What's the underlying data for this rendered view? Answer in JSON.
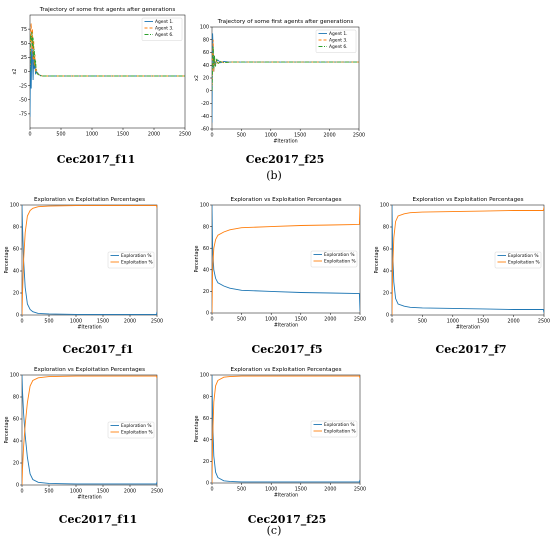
{
  "figure_labels": {
    "top": "(b)",
    "bottom": "(c)"
  },
  "colors": {
    "blue": "#1f77b4",
    "orange": "#ff7f0e",
    "green": "#2ca02c"
  },
  "chart_data": [
    {
      "type": "line",
      "caption": "Cec2017_f11",
      "title": "Trajectory of some first agents after generations",
      "xlabel": "",
      "ylabel": "x2",
      "xlim": [
        0,
        2500
      ],
      "ylim": [
        -100,
        100
      ],
      "xticks": [
        0,
        500,
        1000,
        1500,
        2000,
        2500
      ],
      "yticks": [
        -75,
        -50,
        -25,
        0,
        25,
        50,
        75
      ],
      "legend": "top-right",
      "series": [
        {
          "name": "Agent 1.",
          "color": "#1f77b4",
          "style": "solid",
          "x": [
            0,
            5,
            10,
            15,
            20,
            30,
            40,
            50,
            60,
            70,
            80,
            90,
            100,
            120,
            150,
            200,
            250,
            300,
            400,
            2500
          ],
          "y": [
            -80,
            -20,
            40,
            10,
            -30,
            60,
            20,
            -15,
            30,
            5,
            10,
            -5,
            0,
            -2,
            -6,
            -8,
            -8,
            -8,
            -8,
            -8
          ]
        },
        {
          "name": "Agent 3.",
          "color": "#ff7f0e",
          "style": "dashed",
          "x": [
            0,
            10,
            20,
            30,
            40,
            50,
            60,
            70,
            80,
            90,
            100,
            120,
            150,
            200,
            250,
            300,
            400,
            2500
          ],
          "y": [
            0,
            70,
            85,
            40,
            75,
            20,
            55,
            10,
            30,
            0,
            5,
            -3,
            -6,
            -8,
            -8,
            -8,
            -8,
            -8
          ]
        },
        {
          "name": "Agent 6.",
          "color": "#2ca02c",
          "style": "dashdot",
          "x": [
            0,
            10,
            20,
            30,
            40,
            50,
            60,
            70,
            80,
            90,
            100,
            120,
            150,
            200,
            250,
            300,
            400,
            2500
          ],
          "y": [
            0,
            65,
            55,
            70,
            45,
            60,
            25,
            40,
            10,
            20,
            0,
            -4,
            -7,
            -8,
            -8,
            -8,
            -8,
            -8
          ]
        }
      ]
    },
    {
      "type": "line",
      "caption": "Cec2017_f25",
      "title": "Trajectory of some first agents after generations",
      "xlabel": "#Iteration",
      "ylabel": "x2",
      "xlim": [
        0,
        2500
      ],
      "ylim": [
        -60,
        100
      ],
      "xticks": [
        0,
        500,
        1000,
        1500,
        2000,
        2500
      ],
      "yticks": [
        -60,
        -40,
        -20,
        0,
        20,
        40,
        60,
        80,
        100
      ],
      "legend": "top-right",
      "series": [
        {
          "name": "Agent 1.",
          "color": "#1f77b4",
          "style": "solid",
          "x": [
            0,
            5,
            10,
            20,
            30,
            40,
            50,
            70,
            100,
            150,
            200,
            300,
            500,
            2500
          ],
          "y": [
            -50,
            20,
            90,
            60,
            30,
            55,
            40,
            45,
            48,
            44,
            46,
            45,
            45,
            45
          ]
        },
        {
          "name": "Agent 3.",
          "color": "#ff7f0e",
          "style": "dashed",
          "x": [
            0,
            10,
            20,
            30,
            40,
            60,
            80,
            100,
            150,
            200,
            300,
            500,
            2500
          ],
          "y": [
            0,
            60,
            80,
            30,
            50,
            40,
            48,
            43,
            46,
            44,
            45,
            45,
            45
          ]
        },
        {
          "name": "Agent 6.",
          "color": "#2ca02c",
          "style": "dashdot",
          "x": [
            0,
            10,
            20,
            30,
            40,
            60,
            80,
            100,
            150,
            200,
            300,
            500,
            2500
          ],
          "y": [
            0,
            40,
            70,
            35,
            55,
            38,
            50,
            42,
            46,
            44,
            45,
            45,
            45
          ]
        }
      ]
    },
    {
      "type": "line",
      "caption": "Cec2017_f1",
      "title": "Exploration vs Exploitation Percentages",
      "xlabel": "#Iteration",
      "ylabel": "Percentage",
      "xlim": [
        0,
        2500
      ],
      "ylim": [
        0,
        100
      ],
      "xticks": [
        0,
        500,
        1000,
        1500,
        2000,
        2500
      ],
      "yticks": [
        0,
        20,
        40,
        60,
        80,
        100
      ],
      "legend": "center-right",
      "series": [
        {
          "name": "Exploration %",
          "color": "#1f77b4",
          "x": [
            0,
            10,
            30,
            60,
            100,
            150,
            200,
            300,
            500,
            1000,
            2000,
            2490,
            2500
          ],
          "y": [
            100,
            80,
            50,
            25,
            10,
            5,
            3,
            1.5,
            1,
            0.5,
            0.5,
            0.5,
            3
          ]
        },
        {
          "name": "Exploitation %",
          "color": "#ff7f0e",
          "x": [
            0,
            10,
            30,
            60,
            100,
            150,
            200,
            300,
            500,
            1000,
            2000,
            2490,
            2500
          ],
          "y": [
            0,
            20,
            50,
            75,
            90,
            95,
            97,
            98.5,
            99,
            99.5,
            99.5,
            99.5,
            97
          ]
        }
      ]
    },
    {
      "type": "line",
      "caption": "Cec2017_f5",
      "title": "Exploration vs Exploitation Percentages",
      "xlabel": "#Iteration",
      "ylabel": "Percentage",
      "xlim": [
        0,
        2500
      ],
      "ylim": [
        0,
        100
      ],
      "xticks": [
        0,
        500,
        1000,
        1500,
        2000,
        2500
      ],
      "yticks": [
        0,
        20,
        40,
        60,
        80,
        100
      ],
      "legend": "center-right",
      "series": [
        {
          "name": "Exploration %",
          "color": "#1f77b4",
          "x": [
            0,
            10,
            30,
            60,
            100,
            200,
            300,
            500,
            1000,
            1500,
            2000,
            2490,
            2500
          ],
          "y": [
            100,
            60,
            40,
            32,
            28,
            25,
            23,
            21,
            20,
            19,
            18.5,
            18,
            2
          ]
        },
        {
          "name": "Exploitation %",
          "color": "#ff7f0e",
          "x": [
            0,
            10,
            30,
            60,
            100,
            200,
            300,
            500,
            1000,
            1500,
            2000,
            2490,
            2500
          ],
          "y": [
            0,
            40,
            60,
            68,
            72,
            75,
            77,
            79,
            80,
            81,
            81.5,
            82,
            98
          ]
        }
      ]
    },
    {
      "type": "line",
      "caption": "Cec2017_f7",
      "title": "Exploration vs Exploitation Percentages",
      "xlabel": "#Iteration",
      "ylabel": "Percentage",
      "xlim": [
        0,
        2500
      ],
      "ylim": [
        0,
        100
      ],
      "xticks": [
        0,
        500,
        1000,
        1500,
        2000,
        2500
      ],
      "yticks": [
        0,
        20,
        40,
        60,
        80,
        100
      ],
      "legend": "center-right",
      "series": [
        {
          "name": "Exploration %",
          "color": "#1f77b4",
          "x": [
            0,
            10,
            30,
            60,
            100,
            200,
            300,
            500,
            1000,
            1500,
            2000,
            2490,
            2500
          ],
          "y": [
            100,
            60,
            30,
            15,
            10,
            8,
            7,
            6.5,
            6,
            5.5,
            5,
            5,
            2
          ]
        },
        {
          "name": "Exploitation %",
          "color": "#ff7f0e",
          "x": [
            0,
            10,
            30,
            60,
            100,
            200,
            300,
            500,
            1000,
            1500,
            2000,
            2490,
            2500
          ],
          "y": [
            0,
            40,
            70,
            85,
            90,
            92,
            93,
            93.5,
            94,
            94.5,
            95,
            95,
            98
          ]
        }
      ]
    },
    {
      "type": "line",
      "caption": "Cec2017_f11",
      "title": "Exploration vs Exploitation Percentages",
      "xlabel": "#Iteration",
      "ylabel": "Percentage",
      "xlim": [
        0,
        2500
      ],
      "ylim": [
        0,
        100
      ],
      "xticks": [
        0,
        500,
        1000,
        1500,
        2000,
        2500
      ],
      "yticks": [
        0,
        20,
        40,
        60,
        80,
        100
      ],
      "legend": "center-right",
      "series": [
        {
          "name": "Exploration %",
          "color": "#1f77b4",
          "x": [
            0,
            10,
            30,
            60,
            100,
            150,
            200,
            300,
            500,
            1000,
            2000,
            2490,
            2500
          ],
          "y": [
            100,
            85,
            65,
            45,
            25,
            10,
            5,
            2.5,
            1.5,
            1,
            1,
            1,
            3
          ]
        },
        {
          "name": "Exploitation %",
          "color": "#ff7f0e",
          "x": [
            0,
            10,
            30,
            60,
            100,
            150,
            200,
            300,
            500,
            1000,
            2000,
            2490,
            2500
          ],
          "y": [
            0,
            15,
            35,
            55,
            75,
            90,
            95,
            97.5,
            98.5,
            99,
            99,
            99,
            97
          ]
        }
      ]
    },
    {
      "type": "line",
      "caption": "Cec2017_f25",
      "title": "Exploration vs Exploitation Percentages",
      "xlabel": "#Iteration",
      "ylabel": "Percentage",
      "xlim": [
        0,
        2500
      ],
      "ylim": [
        0,
        100
      ],
      "xticks": [
        0,
        500,
        1000,
        1500,
        2000,
        2500
      ],
      "yticks": [
        0,
        20,
        40,
        60,
        80,
        100
      ],
      "legend": "center-right",
      "series": [
        {
          "name": "Exploration %",
          "color": "#1f77b4",
          "x": [
            0,
            10,
            30,
            60,
            100,
            200,
            300,
            500,
            1000,
            2000,
            2490,
            2500
          ],
          "y": [
            100,
            60,
            25,
            10,
            5,
            2,
            1.5,
            1,
            1,
            1,
            1,
            3
          ]
        },
        {
          "name": "Exploitation %",
          "color": "#ff7f0e",
          "x": [
            0,
            10,
            30,
            60,
            100,
            200,
            300,
            500,
            1000,
            2000,
            2490,
            2500
          ],
          "y": [
            0,
            40,
            75,
            90,
            95,
            98,
            98.5,
            99,
            99,
            99,
            99,
            97
          ]
        }
      ]
    }
  ]
}
